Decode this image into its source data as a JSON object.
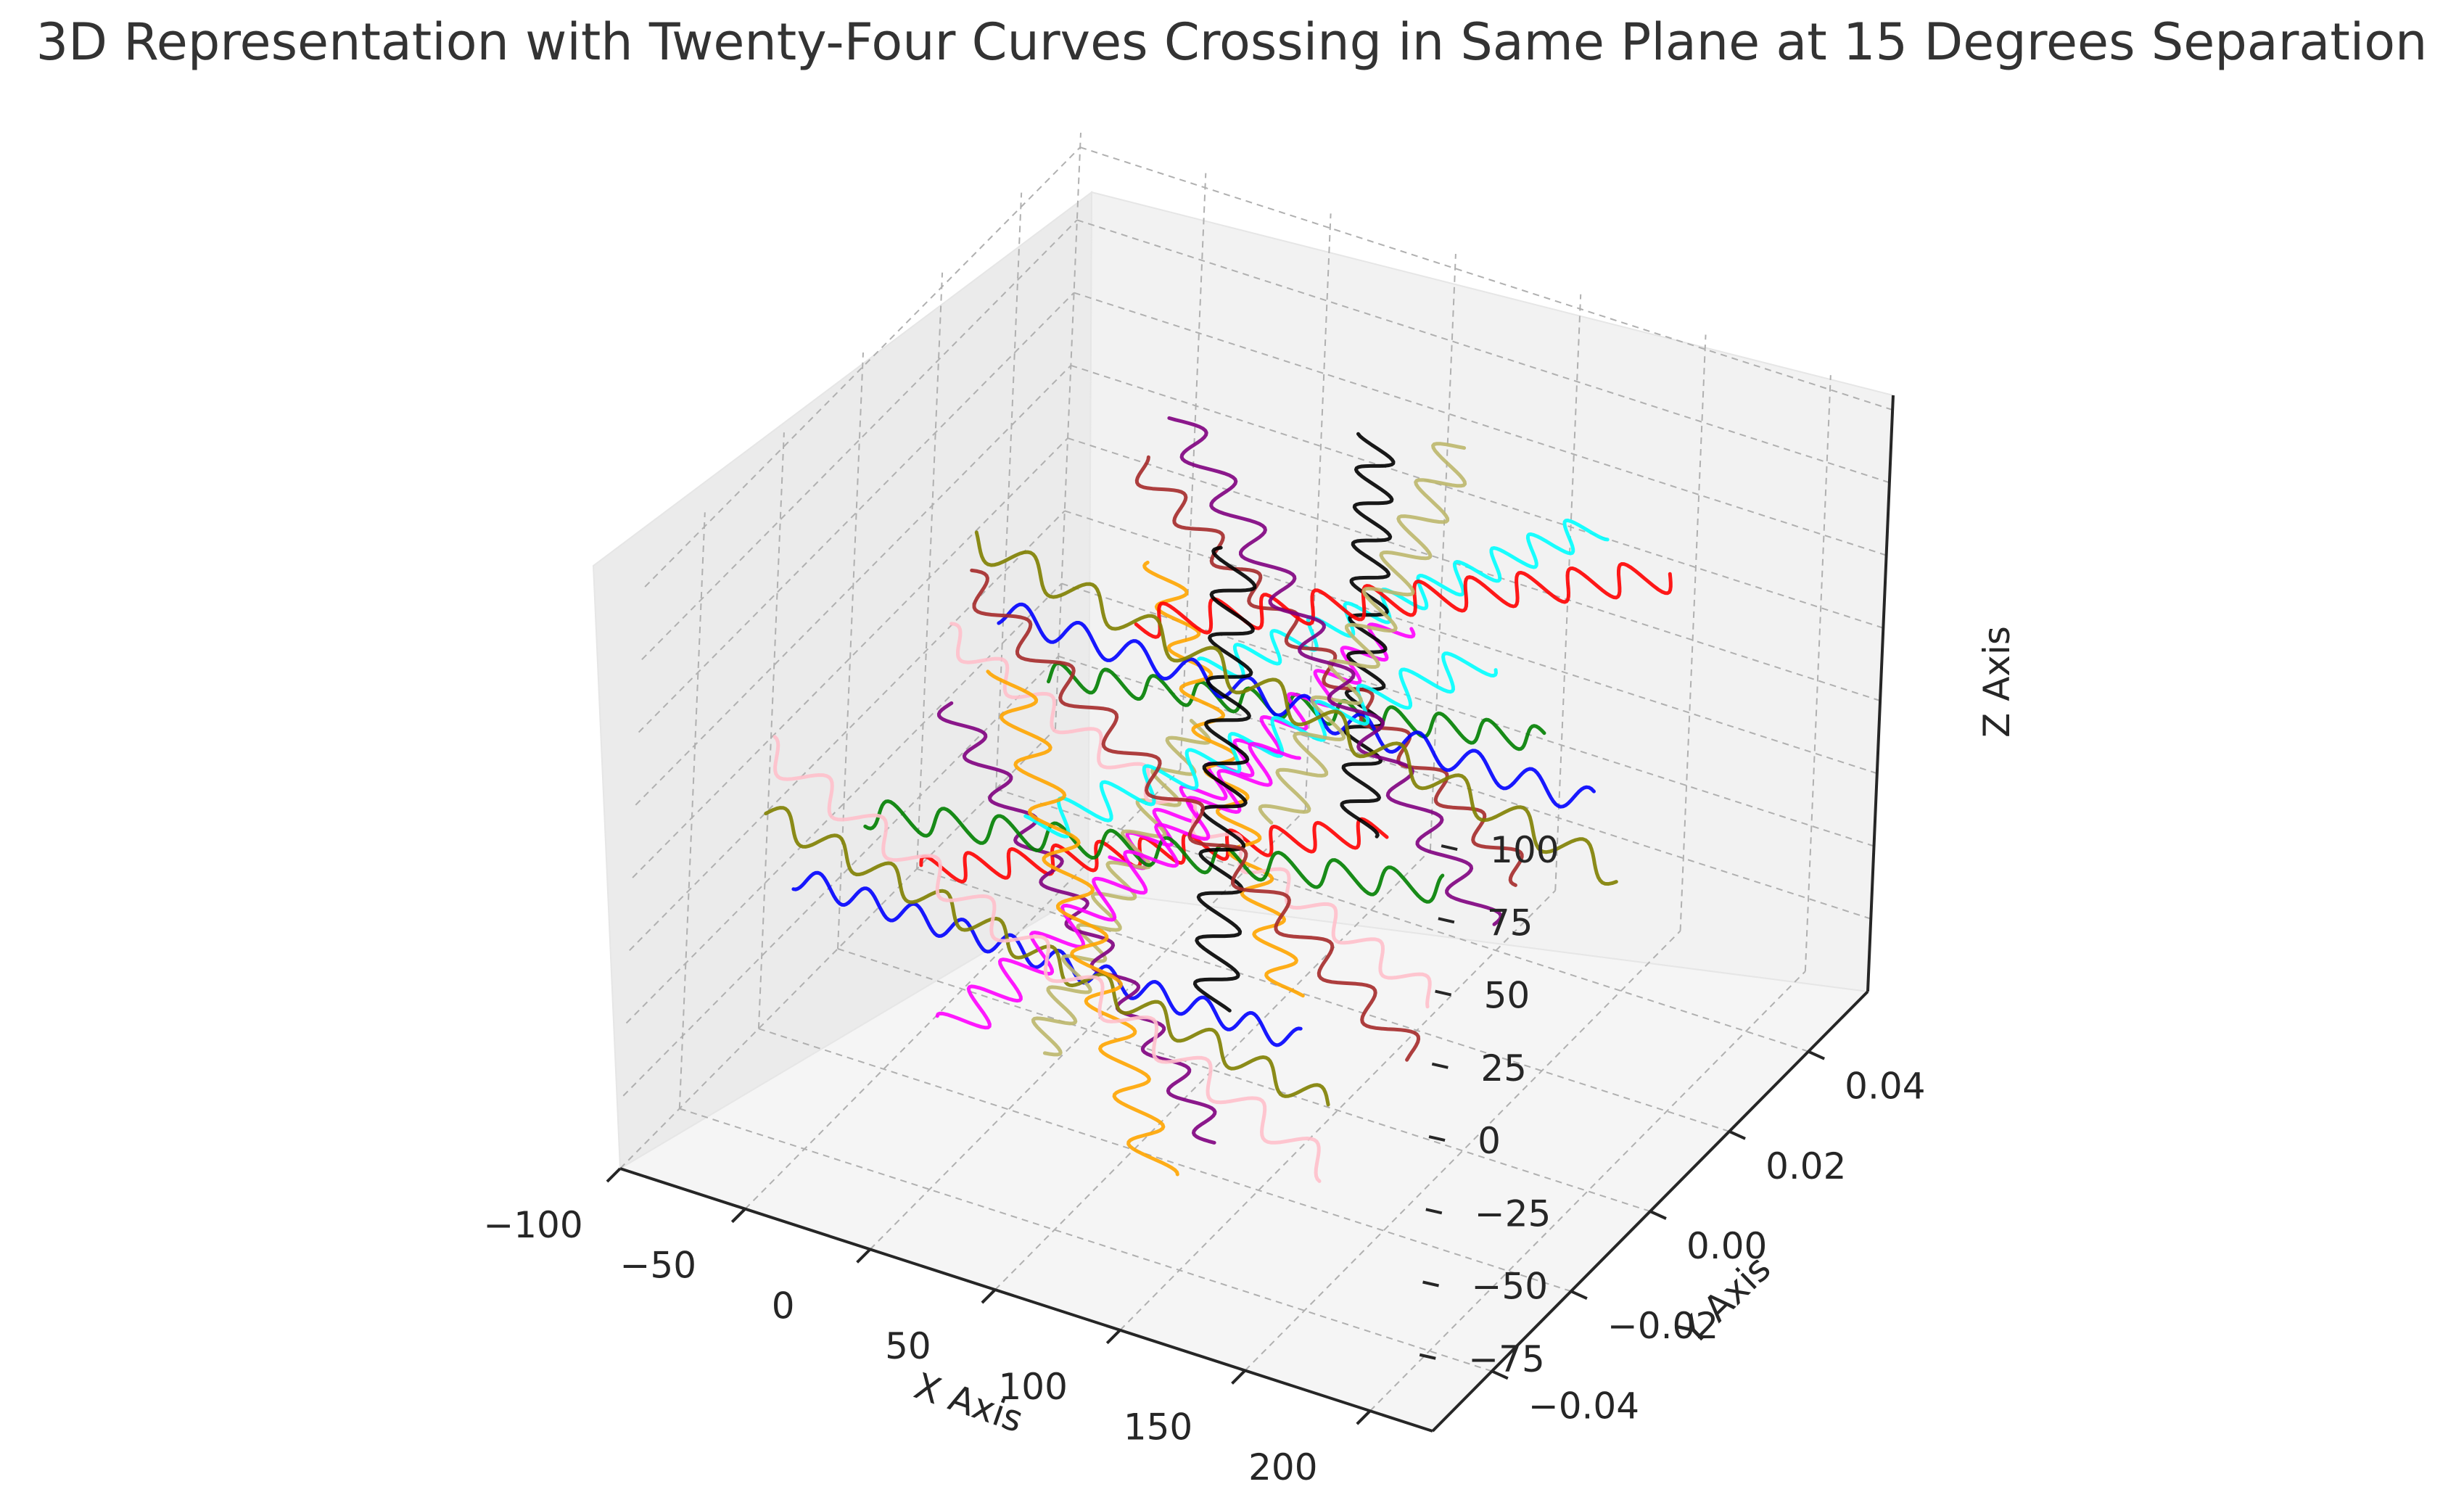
{
  "chart_data": {
    "type": "line",
    "projection": "3d",
    "title": "3D Representation with Twenty-Four Curves Crossing in Same Plane at 15 Degrees Separation",
    "xlabel": "X Axis",
    "ylabel": "Y Axis",
    "zlabel": "Z Axis",
    "xlim": [
      -100,
      225
    ],
    "ylim": [
      -0.055,
      0.055
    ],
    "zlim": [
      -100,
      105
    ],
    "x_ticks": [
      "−100",
      "−50",
      "0",
      "50",
      "100",
      "150",
      "200"
    ],
    "y_ticks": [
      "−0.04",
      "−0.02",
      "0.00",
      "0.02",
      "0.04"
    ],
    "z_ticks": [
      "−75",
      "−50",
      "−25",
      "0",
      "25",
      "50",
      "75",
      "100"
    ],
    "grid": true,
    "curve_count": 24,
    "angle_separation_deg": 15,
    "colors": [
      "#0000ff",
      "#008000",
      "#ff0000",
      "#00ffff",
      "#ff00ff",
      "#bdb76b",
      "#000000",
      "#ffa500",
      "#800080",
      "#a52a2a",
      "#ffc0cb",
      "#808000",
      "#0000ff",
      "#008000",
      "#ff0000",
      "#00ffff",
      "#ff00ff",
      "#bdb76b",
      "#000000",
      "#ffa500",
      "#800080",
      "#a52a2a",
      "#ffc0cb",
      "#808000"
    ]
  }
}
